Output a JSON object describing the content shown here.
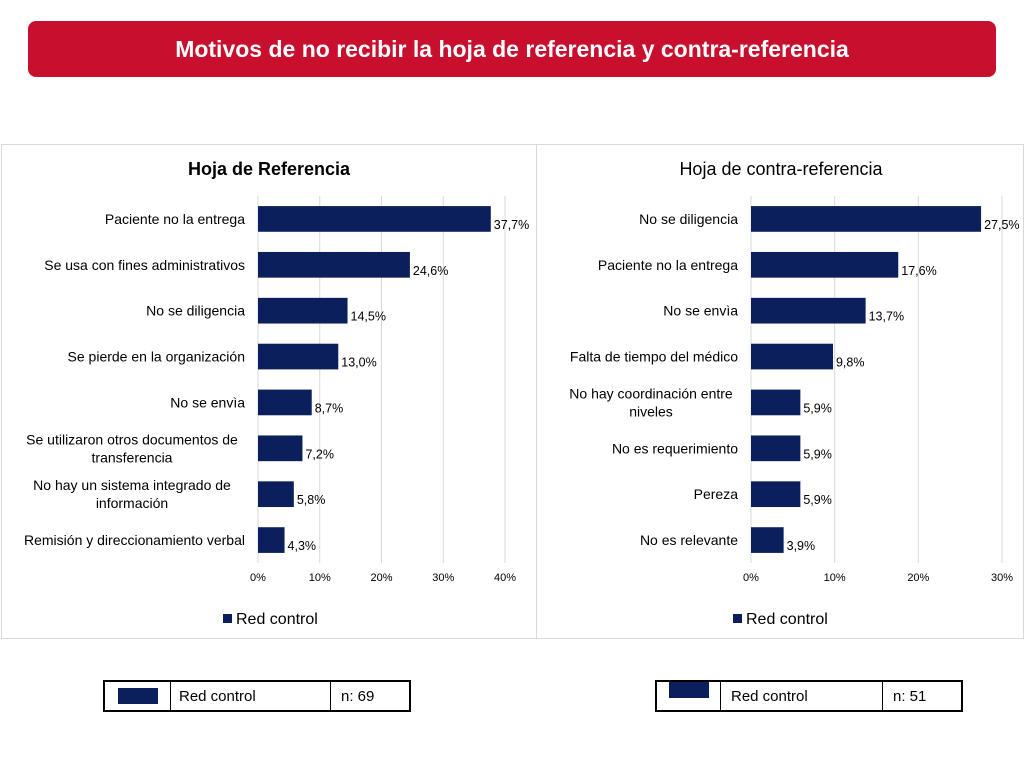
{
  "header": {
    "title": "Motivos de no recibir la hoja de referencia y contra-referencia"
  },
  "colors": {
    "banner": "#c8102e",
    "bar": "#0b1f5c",
    "grid": "#d9d9d9"
  },
  "chart_data": [
    {
      "type": "bar",
      "orientation": "horizontal",
      "title": "Hoja de Referencia",
      "title_bold": true,
      "categories": [
        "Paciente no la entrega",
        "Se usa con fines administrativos",
        "No se diligencia",
        "Se pierde en la organización",
        "No se envìa",
        "Se utilizaron otros documentos de transferencia",
        "No hay un sistema integrado de información",
        "Remisión y direccionamiento verbal"
      ],
      "category_lines": [
        [
          "Paciente no la entrega"
        ],
        [
          "Se usa con fines administrativos"
        ],
        [
          "No se diligencia"
        ],
        [
          "Se pierde en la organización"
        ],
        [
          "No se envìa"
        ],
        [
          "Se utilizaron otros documentos de",
          "transferencia"
        ],
        [
          "No hay un sistema integrado de",
          "información"
        ],
        [
          "Remisión y direccionamiento verbal"
        ]
      ],
      "series": [
        {
          "name": "Red control",
          "values": [
            37.7,
            24.6,
            14.5,
            13.0,
            8.7,
            7.2,
            5.8,
            4.3
          ]
        }
      ],
      "data_labels": [
        "37,7%",
        "24,6%",
        "14,5%",
        "13,0%",
        "8,7%",
        "7,2%",
        "5,8%",
        "4,3%"
      ],
      "xlim": [
        0,
        40
      ],
      "ticks": [
        0,
        10,
        20,
        30,
        40
      ],
      "tick_labels": [
        "0%",
        "10%",
        "20%",
        "30%",
        "40%"
      ],
      "grid": true,
      "legend": "bottom"
    },
    {
      "type": "bar",
      "orientation": "horizontal",
      "title": "Hoja de contra-referencia",
      "title_bold": false,
      "categories": [
        "No se diligencia",
        "Paciente no la entrega",
        "No se envìa",
        "Falta de tiempo del médico",
        "No hay coordinación entre niveles",
        "No es requerimiento",
        "Pereza",
        "No es relevante"
      ],
      "category_lines": [
        [
          "No se diligencia"
        ],
        [
          "Paciente no la entrega"
        ],
        [
          "No se envìa"
        ],
        [
          "Falta de tiempo del médico"
        ],
        [
          "No hay coordinación entre",
          "niveles"
        ],
        [
          "No es requerimiento"
        ],
        [
          "Pereza"
        ],
        [
          "No es relevante"
        ]
      ],
      "series": [
        {
          "name": "Red control",
          "values": [
            27.5,
            17.6,
            13.7,
            9.8,
            5.9,
            5.9,
            5.9,
            3.9
          ]
        }
      ],
      "data_labels": [
        "27,5%",
        "17,6%",
        "13,7%",
        "9,8%",
        "5,9%",
        "5,9%",
        "5,9%",
        "3,9%"
      ],
      "xlim": [
        0,
        30
      ],
      "ticks": [
        0,
        10,
        20,
        30
      ],
      "tick_labels": [
        "0%",
        "10%",
        "20%",
        "30%"
      ],
      "grid": true,
      "legend": "bottom"
    }
  ],
  "legend_tables": [
    {
      "label": "Red control",
      "n": "n: 69"
    },
    {
      "label": "Red control",
      "n": "n: 51"
    }
  ]
}
